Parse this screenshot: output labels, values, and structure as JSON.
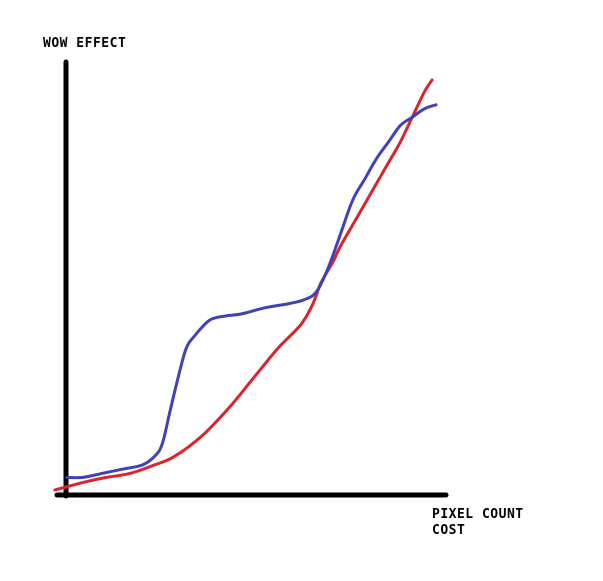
{
  "chart_data": {
    "type": "line",
    "title": "",
    "ylabel": "WOW EFFECT",
    "xlabel_lines": [
      "PIXEL COUNT",
      "COST"
    ],
    "xlim": [
      0,
      100
    ],
    "ylim": [
      0,
      100
    ],
    "grid": false,
    "legend": "none",
    "ticks": "none",
    "series": [
      {
        "color": "#d9252b",
        "points": [
          [
            3,
            1
          ],
          [
            7,
            2
          ],
          [
            11,
            3
          ],
          [
            16,
            4
          ],
          [
            22,
            5
          ],
          [
            28,
            7
          ],
          [
            33,
            9
          ],
          [
            40,
            14
          ],
          [
            47,
            21
          ],
          [
            53,
            28
          ],
          [
            59,
            35
          ],
          [
            65,
            41
          ],
          [
            68,
            46
          ],
          [
            70,
            51
          ],
          [
            73,
            56
          ],
          [
            75,
            60
          ],
          [
            78,
            65
          ],
          [
            81,
            70
          ],
          [
            84,
            75
          ],
          [
            87,
            80
          ],
          [
            90,
            85
          ],
          [
            93,
            91
          ],
          [
            96,
            97
          ],
          [
            98,
            100
          ]
        ]
      },
      {
        "color": "#4141b8",
        "points": [
          [
            6,
            4
          ],
          [
            10,
            4
          ],
          [
            15,
            5
          ],
          [
            20,
            6
          ],
          [
            25,
            7
          ],
          [
            28,
            9
          ],
          [
            30,
            12
          ],
          [
            32,
            20
          ],
          [
            34,
            28
          ],
          [
            36,
            35
          ],
          [
            38,
            38
          ],
          [
            42,
            42
          ],
          [
            46,
            43
          ],
          [
            50,
            43.5
          ],
          [
            56,
            45
          ],
          [
            62,
            46
          ],
          [
            66,
            47
          ],
          [
            69,
            49
          ],
          [
            72,
            55
          ],
          [
            75,
            63
          ],
          [
            78,
            71
          ],
          [
            81,
            76
          ],
          [
            84,
            81
          ],
          [
            87,
            85
          ],
          [
            90,
            89
          ],
          [
            93,
            91
          ],
          [
            96,
            93
          ],
          [
            99,
            94
          ]
        ]
      }
    ]
  }
}
